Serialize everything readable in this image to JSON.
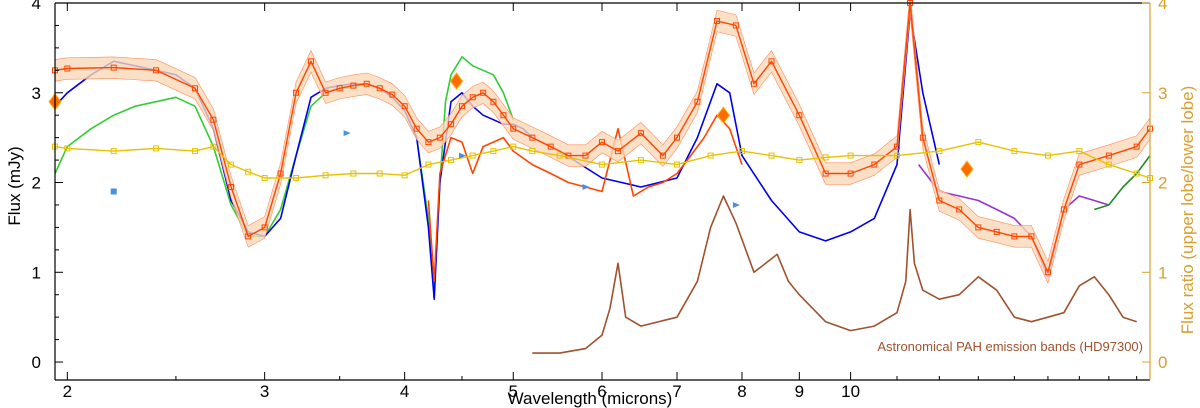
{
  "chart_data": {
    "type": "line",
    "xlabel": "Wavelength (microns)",
    "ylabel": "Flux (mJy)",
    "y2label": "Flux ratio (upper lobe/lower lobe)",
    "x_scale": "log",
    "xlim": [
      1.95,
      18.5
    ],
    "ylim": [
      -0.2,
      4.0
    ],
    "y2lim": [
      -0.2,
      4.0
    ],
    "x_ticks": [
      2,
      3,
      4,
      5,
      6,
      7,
      8,
      9,
      10
    ],
    "x_tick_labels": [
      "2",
      "3",
      "4",
      "5",
      "6",
      "7",
      "8",
      "9",
      "10"
    ],
    "y_ticks": [
      0,
      1,
      2,
      3,
      4
    ],
    "y_tick_labels": [
      "0",
      "1",
      "2",
      "3",
      "4"
    ],
    "y2_ticks": [
      0,
      1,
      2,
      3,
      4
    ],
    "y2_tick_labels": [
      "0",
      "1",
      "2",
      "3",
      "4"
    ],
    "annotation": "Astronomical PAH emission bands (HD97300)",
    "series": [
      {
        "name": "green spectrum",
        "color": "#33cc33",
        "x": [
          1.95,
          2.0,
          2.1,
          2.2,
          2.3,
          2.4,
          2.5,
          2.6,
          2.7,
          2.8,
          2.9,
          3.0,
          3.1,
          3.2,
          3.3,
          3.4,
          3.5,
          3.6,
          3.7,
          3.8,
          3.9,
          4.0,
          4.1,
          4.2,
          4.25,
          4.3,
          4.35,
          4.4,
          4.5,
          4.6,
          4.7,
          4.8,
          4.9,
          5.0
        ],
        "y": [
          2.1,
          2.4,
          2.6,
          2.75,
          2.85,
          2.9,
          2.95,
          2.85,
          2.4,
          1.75,
          1.4,
          1.4,
          1.7,
          2.3,
          2.85,
          3.0,
          3.05,
          3.05,
          3.1,
          3.05,
          2.95,
          2.8,
          2.5,
          1.6,
          0.8,
          2.0,
          2.9,
          3.2,
          3.4,
          3.3,
          3.25,
          3.2,
          3.0,
          2.7
        ]
      },
      {
        "name": "blue spectrum",
        "color": "#0000ee",
        "x": [
          1.95,
          2.0,
          2.1,
          2.2,
          2.3,
          2.4,
          2.5,
          2.6,
          2.7,
          2.8,
          2.9,
          3.0,
          3.1,
          3.2,
          3.3,
          3.4,
          3.5,
          3.6,
          3.7,
          3.8,
          3.9,
          4.0,
          4.1,
          4.2,
          4.25,
          4.3,
          4.4,
          4.5,
          4.6,
          4.7,
          4.8,
          4.9,
          5.0,
          5.1,
          5.2,
          5.5,
          6.0,
          6.5,
          7.0,
          7.3,
          7.6,
          7.8,
          8.0,
          8.5,
          9.0,
          9.5,
          10.0,
          10.5,
          11.0,
          11.3,
          11.6,
          12.0
        ],
        "y": [
          2.85,
          3.0,
          3.2,
          3.35,
          3.3,
          3.25,
          3.2,
          3.05,
          2.6,
          1.8,
          1.45,
          1.4,
          1.6,
          2.3,
          2.95,
          3.05,
          3.08,
          3.1,
          3.1,
          3.05,
          2.95,
          2.8,
          2.5,
          1.5,
          0.7,
          2.0,
          2.9,
          3.0,
          2.85,
          2.75,
          2.7,
          2.65,
          2.65,
          2.6,
          2.5,
          2.35,
          2.05,
          1.95,
          2.05,
          2.5,
          3.1,
          3.0,
          2.3,
          1.8,
          1.45,
          1.35,
          1.45,
          1.6,
          2.2,
          3.9,
          3.0,
          2.2
        ]
      },
      {
        "name": "orange-red spectrum",
        "color": "#ff4500",
        "x": [
          4.2,
          4.25,
          4.3,
          4.4,
          4.5,
          4.6,
          4.7,
          4.8,
          4.9,
          5.0,
          5.2,
          5.4,
          5.6,
          5.8,
          6.0,
          6.2,
          6.4,
          6.6,
          6.8,
          7.0,
          7.2,
          7.4,
          7.6,
          7.8,
          8.0
        ],
        "y": [
          1.8,
          0.9,
          2.1,
          2.5,
          2.45,
          2.1,
          2.4,
          2.45,
          2.5,
          2.35,
          2.2,
          2.1,
          2.0,
          1.95,
          1.9,
          2.6,
          1.85,
          1.95,
          2.0,
          2.1,
          2.3,
          2.5,
          2.75,
          2.6,
          2.2
        ]
      },
      {
        "name": "purple spectrum",
        "color": "#9933cc",
        "x": [
          11.5,
          12.0,
          12.5,
          13.0,
          13.5,
          14.0,
          14.5,
          15.0,
          15.5,
          16.0,
          16.5,
          17.0
        ],
        "y": [
          2.2,
          1.9,
          1.85,
          1.8,
          1.7,
          1.6,
          1.4,
          0.95,
          1.7,
          1.85,
          1.8,
          1.75
        ]
      },
      {
        "name": "dark green spectrum",
        "color": "#228b22",
        "x": [
          16.5,
          17.0,
          17.5,
          18.0,
          18.5
        ],
        "y": [
          1.7,
          1.75,
          1.95,
          2.1,
          2.3
        ]
      },
      {
        "name": "flux with errors (squares)",
        "color": "#ff4500",
        "x": [
          1.95,
          2.0,
          2.2,
          2.4,
          2.6,
          2.7,
          2.8,
          2.9,
          3.0,
          3.1,
          3.2,
          3.3,
          3.4,
          3.5,
          3.6,
          3.7,
          3.8,
          3.9,
          4.0,
          4.1,
          4.2,
          4.3,
          4.4,
          4.5,
          4.6,
          4.7,
          4.8,
          4.9,
          5.0,
          5.2,
          5.4,
          5.6,
          5.8,
          6.0,
          6.2,
          6.5,
          6.8,
          7.0,
          7.3,
          7.6,
          7.9,
          8.2,
          8.5,
          9.0,
          9.5,
          10.0,
          10.5,
          11.0,
          11.3,
          11.6,
          12.0,
          12.5,
          13.0,
          13.5,
          14.0,
          14.5,
          15.0,
          15.5,
          16.0,
          17.0,
          18.0,
          18.5
        ],
        "y": [
          3.25,
          3.27,
          3.28,
          3.25,
          3.05,
          2.7,
          1.95,
          1.4,
          1.5,
          2.1,
          3.0,
          3.35,
          3.0,
          3.05,
          3.08,
          3.1,
          3.05,
          2.98,
          2.85,
          2.6,
          2.45,
          2.5,
          2.65,
          2.85,
          2.95,
          3.0,
          2.9,
          2.75,
          2.6,
          2.5,
          2.4,
          2.3,
          2.3,
          2.45,
          2.35,
          2.55,
          2.3,
          2.5,
          2.9,
          3.8,
          3.75,
          3.1,
          3.35,
          2.75,
          2.1,
          2.1,
          2.2,
          2.4,
          4.0,
          2.5,
          1.8,
          1.7,
          1.5,
          1.45,
          1.4,
          1.4,
          1.0,
          1.7,
          2.2,
          2.3,
          2.4,
          2.6
        ]
      },
      {
        "name": "flux ratio (upper lobe/lower lobe)",
        "color": "#e6c200",
        "axis": "right",
        "x": [
          1.95,
          2.0,
          2.2,
          2.4,
          2.6,
          2.7,
          2.8,
          2.9,
          3.0,
          3.2,
          3.4,
          3.6,
          3.8,
          4.0,
          4.2,
          4.4,
          4.6,
          4.8,
          5.0,
          5.2,
          5.5,
          6.0,
          6.5,
          7.0,
          7.5,
          8.0,
          8.5,
          9.0,
          9.5,
          10.0,
          11.0,
          12.0,
          13.0,
          14.0,
          15.0,
          16.0,
          17.0,
          18.0,
          18.5
        ],
        "y": [
          2.4,
          2.38,
          2.35,
          2.38,
          2.35,
          2.4,
          2.2,
          2.12,
          2.05,
          2.05,
          2.08,
          2.1,
          2.1,
          2.08,
          2.2,
          2.25,
          2.3,
          2.35,
          2.4,
          2.35,
          2.3,
          2.2,
          2.25,
          2.2,
          2.3,
          2.35,
          2.3,
          2.25,
          2.28,
          2.3,
          2.3,
          2.35,
          2.45,
          2.35,
          2.3,
          2.35,
          2.2,
          2.1,
          2.05
        ]
      },
      {
        "name": "Astronomical PAH emission bands (HD97300)",
        "color": "#a0522d",
        "x": [
          5.2,
          5.5,
          5.8,
          6.0,
          6.1,
          6.2,
          6.3,
          6.5,
          7.0,
          7.3,
          7.5,
          7.7,
          7.9,
          8.2,
          8.4,
          8.6,
          8.8,
          9.0,
          9.5,
          10.0,
          10.5,
          11.0,
          11.2,
          11.3,
          11.4,
          11.6,
          12.0,
          12.5,
          13.0,
          13.5,
          14.0,
          14.5,
          15.0,
          15.5,
          16.0,
          16.5,
          17.0,
          17.5,
          18.0
        ],
        "y": [
          0.1,
          0.1,
          0.15,
          0.3,
          0.6,
          1.1,
          0.5,
          0.4,
          0.5,
          0.9,
          1.5,
          1.85,
          1.55,
          1.0,
          1.1,
          1.2,
          0.9,
          0.75,
          0.45,
          0.35,
          0.4,
          0.55,
          0.9,
          1.7,
          1.1,
          0.8,
          0.7,
          0.75,
          0.95,
          0.8,
          0.5,
          0.45,
          0.5,
          0.55,
          0.85,
          0.95,
          0.75,
          0.5,
          0.45
        ]
      }
    ],
    "markers": [
      {
        "name": "filled orange diamond",
        "color": "#ff6a00",
        "x": 1.95,
        "y": 2.9
      },
      {
        "name": "filled orange diamond",
        "color": "#ff6a00",
        "x": 4.45,
        "y": 3.13
      },
      {
        "name": "filled orange diamond",
        "color": "#ff6a00",
        "x": 7.7,
        "y": 2.75
      },
      {
        "name": "filled orange diamond",
        "color": "#ff6a00",
        "x": 12.7,
        "y": 2.15
      },
      {
        "name": "blue square",
        "color": "#4a90e2",
        "x": 2.2,
        "y": 1.9
      },
      {
        "name": "blue triangle",
        "color": "#4a90e2",
        "x": 3.55,
        "y": 2.55
      },
      {
        "name": "blue triangle",
        "color": "#4a90e2",
        "x": 4.5,
        "y": 2.3
      },
      {
        "name": "blue triangle",
        "color": "#4a90e2",
        "x": 5.8,
        "y": 1.95
      },
      {
        "name": "blue triangle",
        "color": "#4a90e2",
        "x": 7.9,
        "y": 1.75
      }
    ]
  }
}
